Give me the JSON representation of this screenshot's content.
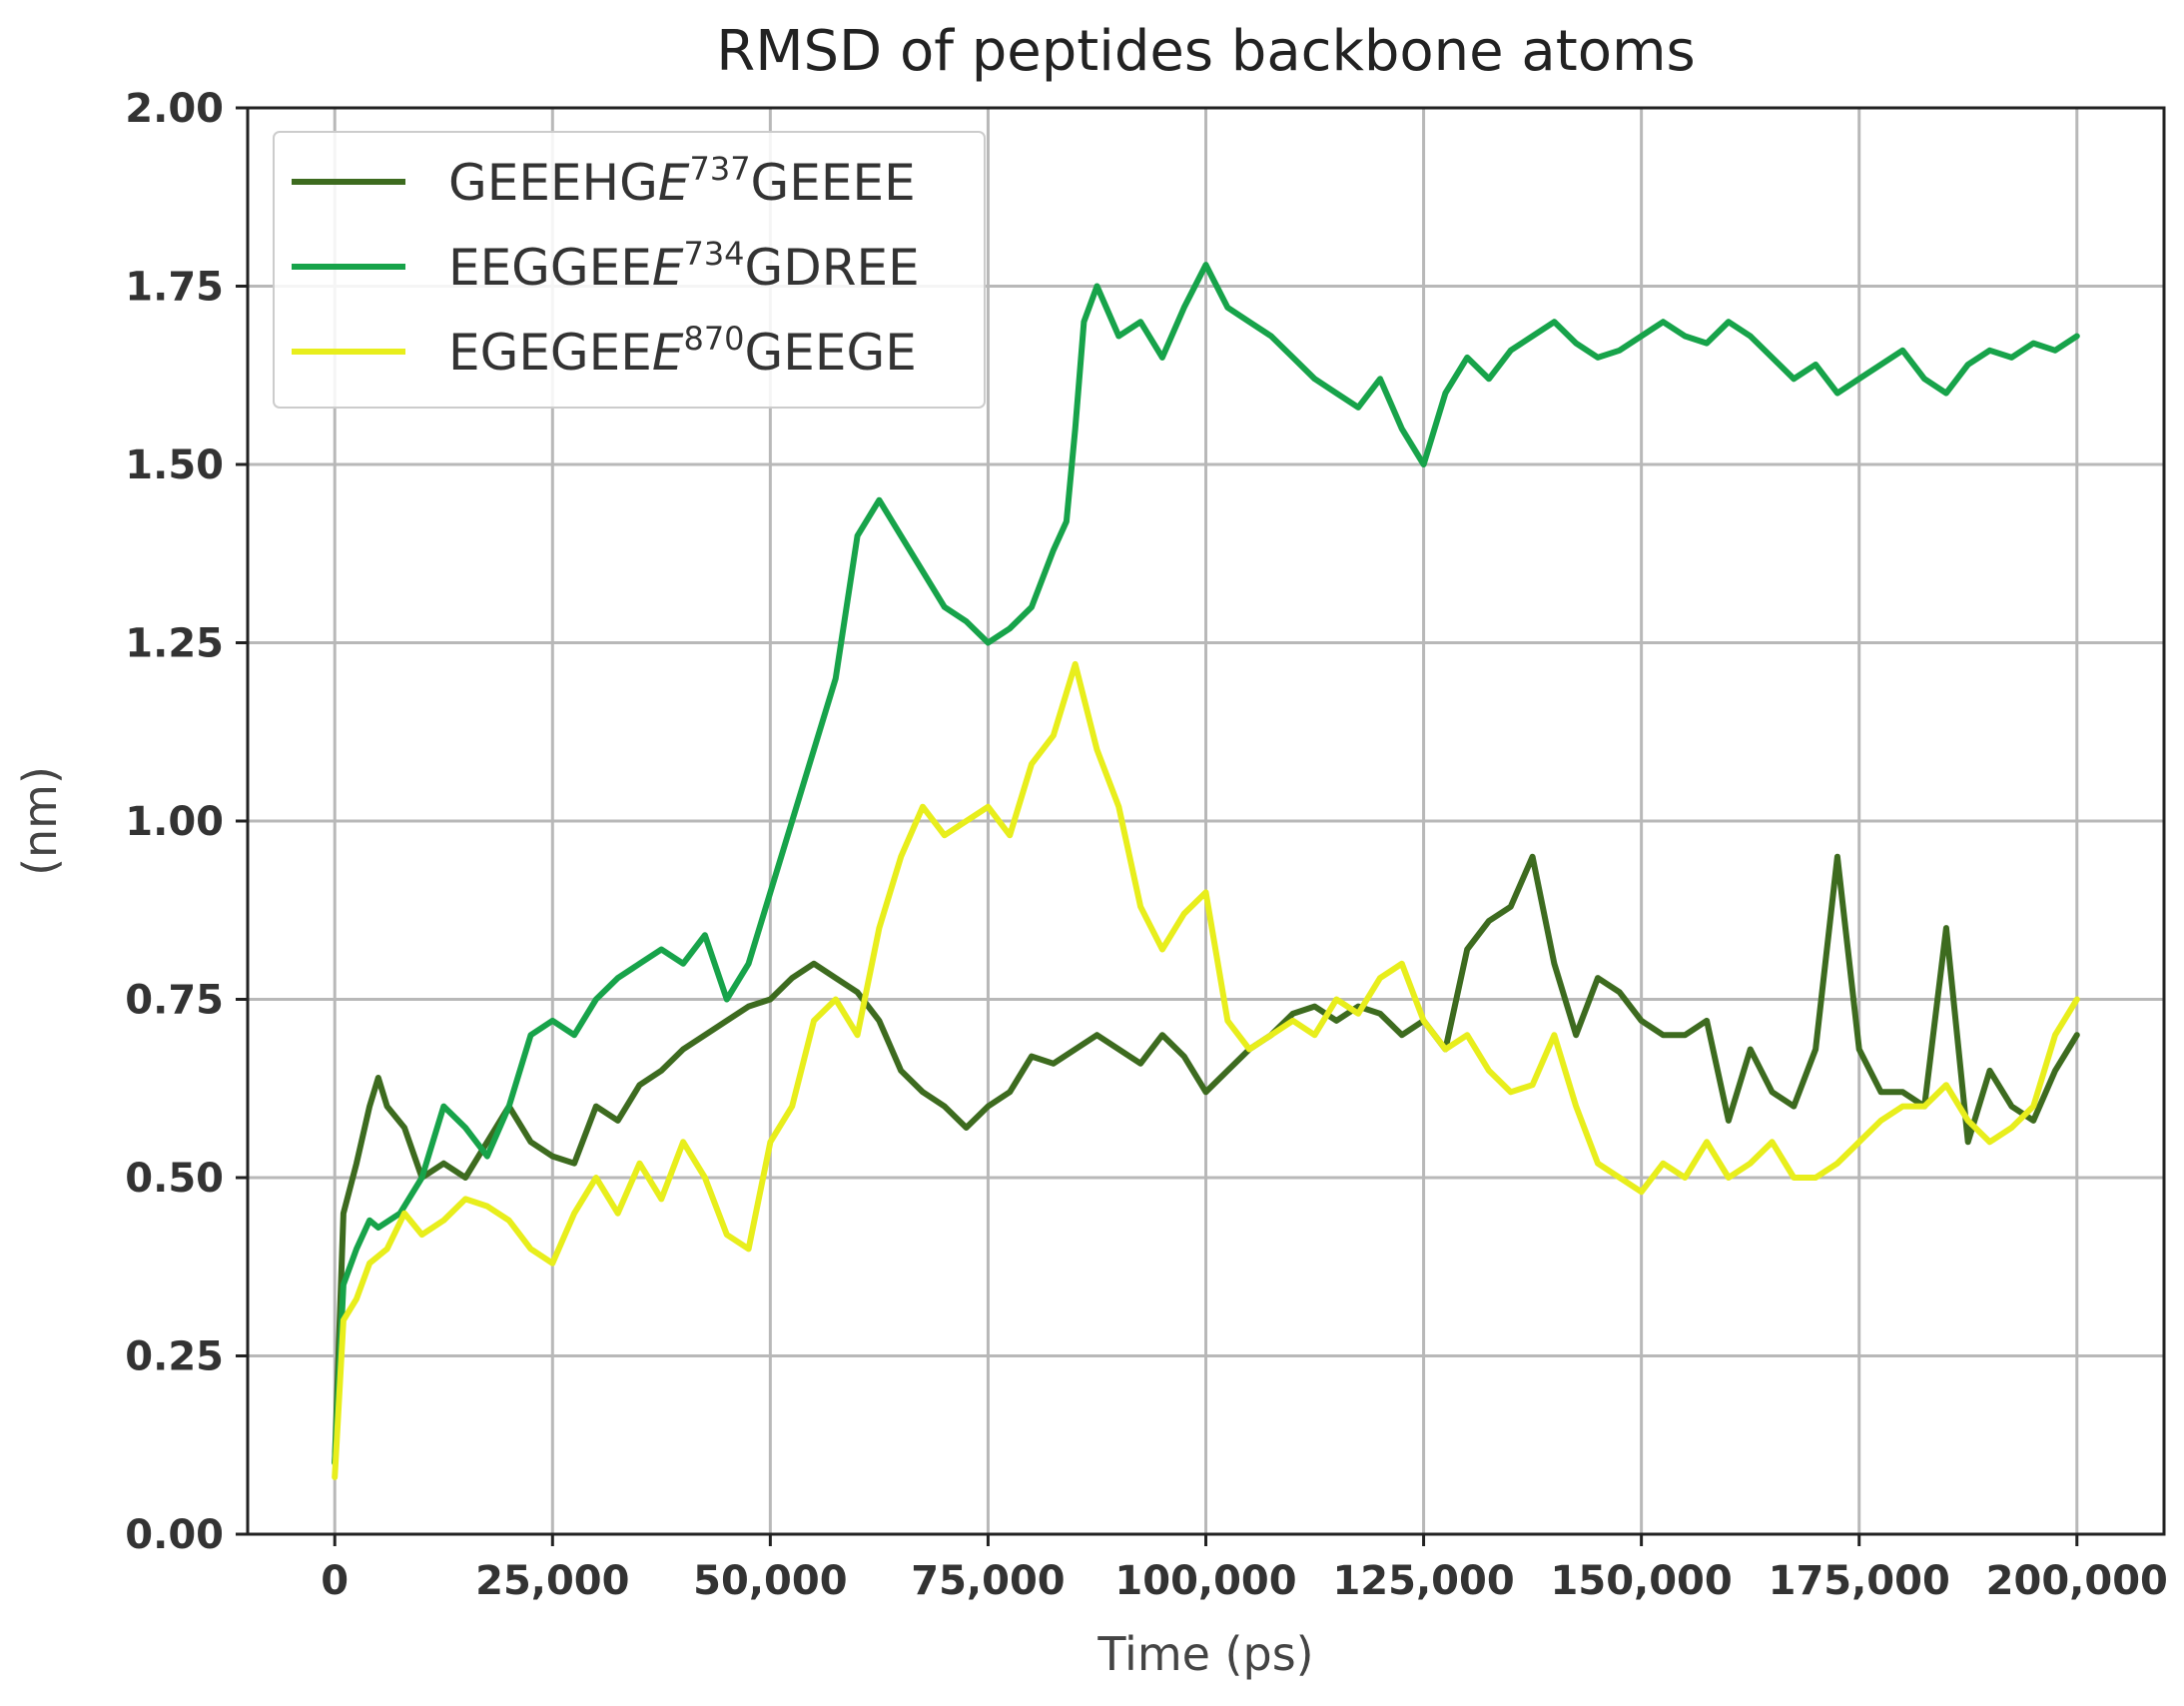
{
  "chart_data": {
    "type": "line",
    "title": "RMSD of peptides backbone atoms",
    "xlabel": "Time (ps)",
    "ylabel": "(nm)",
    "xlim": [
      -10000,
      210000
    ],
    "ylim": [
      0,
      2.0
    ],
    "grid": true,
    "legend_position": "top-left",
    "x_ticks": [
      0,
      25000,
      50000,
      75000,
      100000,
      125000,
      150000,
      175000,
      200000
    ],
    "x_tick_labels": [
      "0",
      "25,000",
      "50,000",
      "75,000",
      "100,000",
      "125,000",
      "150,000",
      "175,000",
      "200,000"
    ],
    "y_ticks": [
      0,
      0.25,
      0.5,
      0.75,
      1.0,
      1.25,
      1.5,
      1.75,
      2.0
    ],
    "y_tick_labels": [
      "0.00",
      "0.25",
      "0.50",
      "0.75",
      "1.00",
      "1.25",
      "1.50",
      "1.75",
      "2.00"
    ],
    "series": [
      {
        "name": "GEEEHGE737GEEEE",
        "label_parts": {
          "prefix": "GEEEHG",
          "italic": "E",
          "sup": "737",
          "suffix": "GEEEE"
        },
        "color": "#3d6b1f",
        "x": [
          0,
          1000,
          2500,
          4000,
          5000,
          6000,
          8000,
          10000,
          12500,
          15000,
          17500,
          20000,
          22500,
          25000,
          27500,
          30000,
          32500,
          35000,
          37500,
          40000,
          42500,
          45000,
          47500,
          50000,
          52500,
          55000,
          57500,
          60000,
          62500,
          65000,
          67500,
          70000,
          72500,
          75000,
          77500,
          80000,
          82500,
          85000,
          87500,
          90000,
          92500,
          95000,
          97500,
          100000,
          102500,
          105000,
          107500,
          110000,
          112500,
          115000,
          117500,
          120000,
          122500,
          125000,
          127500,
          130000,
          132500,
          135000,
          137500,
          140000,
          142500,
          145000,
          147500,
          150000,
          152500,
          155000,
          157500,
          160000,
          162500,
          165000,
          167500,
          170000,
          172500,
          175000,
          177500,
          180000,
          182500,
          185000,
          187500,
          190000,
          192500,
          195000,
          197500,
          200000
        ],
        "y": [
          0.1,
          0.45,
          0.52,
          0.6,
          0.64,
          0.6,
          0.57,
          0.5,
          0.52,
          0.5,
          0.55,
          0.6,
          0.55,
          0.53,
          0.52,
          0.6,
          0.58,
          0.63,
          0.65,
          0.68,
          0.7,
          0.72,
          0.74,
          0.75,
          0.78,
          0.8,
          0.78,
          0.76,
          0.72,
          0.65,
          0.62,
          0.6,
          0.57,
          0.6,
          0.62,
          0.67,
          0.66,
          0.68,
          0.7,
          0.68,
          0.66,
          0.7,
          0.67,
          0.62,
          0.65,
          0.68,
          0.7,
          0.73,
          0.74,
          0.72,
          0.74,
          0.73,
          0.7,
          0.72,
          0.68,
          0.82,
          0.86,
          0.88,
          0.95,
          0.8,
          0.7,
          0.78,
          0.76,
          0.72,
          0.7,
          0.7,
          0.72,
          0.58,
          0.68,
          0.62,
          0.6,
          0.68,
          0.95,
          0.68,
          0.62,
          0.62,
          0.6,
          0.85,
          0.55,
          0.65,
          0.6,
          0.58,
          0.65,
          0.7
        ]
      },
      {
        "name": "EEGGEEE734GDREE",
        "label_parts": {
          "prefix": "EEGGEE",
          "italic": "E",
          "sup": "734",
          "suffix": "GDREE"
        },
        "color": "#17a34a",
        "x": [
          0,
          1000,
          2500,
          4000,
          5000,
          7500,
          10000,
          12500,
          15000,
          17500,
          20000,
          22500,
          25000,
          27500,
          30000,
          32500,
          35000,
          37500,
          40000,
          42500,
          45000,
          47500,
          50000,
          52500,
          55000,
          57500,
          60000,
          62500,
          65000,
          67500,
          70000,
          72500,
          75000,
          77500,
          80000,
          82500,
          84000,
          85000,
          86000,
          87500,
          90000,
          92500,
          95000,
          97500,
          100000,
          102500,
          105000,
          107500,
          110000,
          112500,
          115000,
          117500,
          120000,
          122500,
          125000,
          127500,
          130000,
          132500,
          135000,
          137500,
          140000,
          142500,
          145000,
          147500,
          150000,
          152500,
          155000,
          157500,
          160000,
          162500,
          165000,
          167500,
          170000,
          172500,
          175000,
          177500,
          180000,
          182500,
          185000,
          187500,
          190000,
          192500,
          195000,
          197500,
          200000
        ],
        "y": [
          0.1,
          0.35,
          0.4,
          0.44,
          0.43,
          0.45,
          0.5,
          0.6,
          0.57,
          0.53,
          0.6,
          0.7,
          0.72,
          0.7,
          0.75,
          0.78,
          0.8,
          0.82,
          0.8,
          0.84,
          0.75,
          0.8,
          0.9,
          1.0,
          1.1,
          1.2,
          1.4,
          1.45,
          1.4,
          1.35,
          1.3,
          1.28,
          1.25,
          1.27,
          1.3,
          1.38,
          1.42,
          1.55,
          1.7,
          1.75,
          1.68,
          1.7,
          1.65,
          1.72,
          1.78,
          1.72,
          1.7,
          1.68,
          1.65,
          1.62,
          1.6,
          1.58,
          1.62,
          1.55,
          1.5,
          1.6,
          1.65,
          1.62,
          1.66,
          1.68,
          1.7,
          1.67,
          1.65,
          1.66,
          1.68,
          1.7,
          1.68,
          1.67,
          1.7,
          1.68,
          1.65,
          1.62,
          1.64,
          1.6,
          1.62,
          1.64,
          1.66,
          1.62,
          1.6,
          1.64,
          1.66,
          1.65,
          1.67,
          1.66,
          1.68
        ]
      },
      {
        "name": "EGEGEEE870GEEGE",
        "label_parts": {
          "prefix": "EGEGEE",
          "italic": "E",
          "sup": "870",
          "suffix": "GEEGE"
        },
        "color": "#e8ee1c",
        "x": [
          0,
          1000,
          2500,
          4000,
          6000,
          8000,
          10000,
          12500,
          15000,
          17500,
          20000,
          22500,
          25000,
          27500,
          30000,
          32500,
          35000,
          37500,
          40000,
          42500,
          45000,
          47500,
          50000,
          52500,
          55000,
          57500,
          60000,
          62500,
          65000,
          67500,
          70000,
          72500,
          75000,
          77500,
          80000,
          82500,
          85000,
          87500,
          90000,
          92500,
          95000,
          97500,
          100000,
          102500,
          105000,
          107500,
          110000,
          112500,
          115000,
          117500,
          120000,
          122500,
          125000,
          127500,
          130000,
          132500,
          135000,
          137500,
          140000,
          142500,
          145000,
          147500,
          150000,
          152500,
          155000,
          157500,
          160000,
          162500,
          165000,
          167500,
          170000,
          172500,
          175000,
          177500,
          180000,
          182500,
          185000,
          187500,
          190000,
          192500,
          195000,
          197500,
          200000
        ],
        "y": [
          0.08,
          0.3,
          0.33,
          0.38,
          0.4,
          0.45,
          0.42,
          0.44,
          0.47,
          0.46,
          0.44,
          0.4,
          0.38,
          0.45,
          0.5,
          0.45,
          0.52,
          0.47,
          0.55,
          0.5,
          0.42,
          0.4,
          0.55,
          0.6,
          0.72,
          0.75,
          0.7,
          0.85,
          0.95,
          1.02,
          0.98,
          1.0,
          1.02,
          0.98,
          1.08,
          1.12,
          1.22,
          1.1,
          1.02,
          0.88,
          0.82,
          0.87,
          0.9,
          0.72,
          0.68,
          0.7,
          0.72,
          0.7,
          0.75,
          0.73,
          0.78,
          0.8,
          0.72,
          0.68,
          0.7,
          0.65,
          0.62,
          0.63,
          0.7,
          0.6,
          0.52,
          0.5,
          0.48,
          0.52,
          0.5,
          0.55,
          0.5,
          0.52,
          0.55,
          0.5,
          0.5,
          0.52,
          0.55,
          0.58,
          0.6,
          0.6,
          0.63,
          0.58,
          0.55,
          0.57,
          0.6,
          0.7,
          0.75
        ]
      }
    ]
  }
}
